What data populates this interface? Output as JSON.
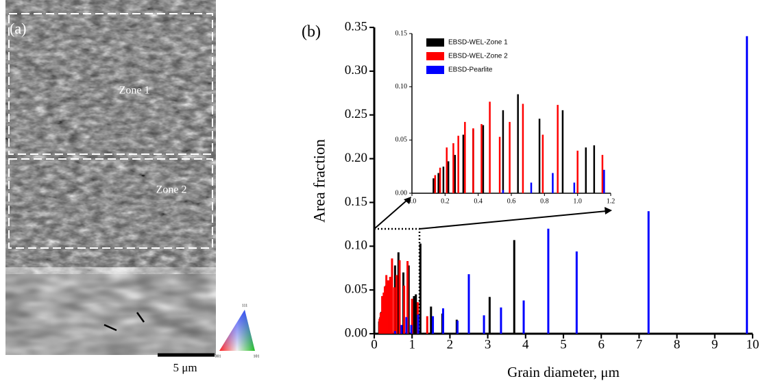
{
  "panel_a": {
    "label": "(a)",
    "zone1": "Zone 1",
    "zone2": "Zone 2",
    "scale_bar": "5 μm",
    "ipf": [
      "111",
      "001",
      "101"
    ]
  },
  "chart_data": {
    "type": "bar",
    "panel_label": "(b)",
    "x_label": "Grain diameter, μm",
    "y_label": "Area fraction",
    "xlim": [
      0,
      10
    ],
    "xticks": [
      0,
      1,
      2,
      3,
      4,
      5,
      6,
      7,
      8,
      9,
      10
    ],
    "ylim": [
      0,
      0.35
    ],
    "yticks": [
      {
        "value": 0,
        "label": "0.00"
      },
      0.05,
      {
        "value": 0.1,
        "label": "0.10"
      },
      0.15,
      {
        "value": 0.2,
        "label": "0.20"
      },
      0.25,
      {
        "value": 0.3,
        "label": "0.30"
      },
      0.35
    ],
    "series": [
      {
        "name": "EBSD-WEL-Zone 1",
        "color": "#000000",
        "x": [
          0.13,
          0.16,
          0.19,
          0.22,
          0.26,
          0.31,
          0.37,
          0.43,
          0.55,
          0.64,
          0.77,
          0.91,
          1.05,
          1.1,
          1.22,
          1.5,
          1.8,
          2.18,
          3.05,
          3.7
        ],
        "values": [
          0.014,
          0.019,
          0.025,
          0.03,
          0.036,
          0.055,
          0.06,
          0.064,
          0.078,
          0.093,
          0.07,
          0.078,
          0.043,
          0.045,
          0.103,
          0.031,
          0.023,
          0.016,
          0.042,
          0.107
        ]
      },
      {
        "name": "EBSD-WEL-Zone 2",
        "color": "#ff0000",
        "x": [
          0.14,
          0.17,
          0.21,
          0.25,
          0.28,
          0.32,
          0.37,
          0.42,
          0.47,
          0.53,
          0.59,
          0.67,
          0.79,
          0.88,
          1.0,
          1.15,
          1.4
        ],
        "values": [
          0.017,
          0.024,
          0.043,
          0.047,
          0.054,
          0.067,
          0.061,
          0.065,
          0.086,
          0.053,
          0.067,
          0.084,
          0.055,
          0.083,
          0.04,
          0.036,
          0.02
        ]
      },
      {
        "name": "EBSD-Pearlite",
        "color": "#0000ff",
        "x": [
          0.55,
          0.72,
          0.85,
          0.98,
          1.16,
          1.55,
          1.82,
          2.2,
          2.5,
          2.9,
          3.35,
          3.95,
          4.6,
          5.35,
          7.25,
          9.85
        ],
        "values": [
          0.003,
          0.01,
          0.019,
          0.01,
          0.022,
          0.02,
          0.029,
          0.015,
          0.068,
          0.021,
          0.03,
          0.038,
          0.12,
          0.094,
          0.14,
          0.34
        ]
      }
    ],
    "inset": {
      "xlim": [
        0,
        1.2
      ],
      "xticks": [
        {
          "value": 0,
          "label": "0.0"
        },
        0.2,
        0.4,
        0.6,
        0.8,
        {
          "value": 1,
          "label": "1.0"
        },
        1.2
      ],
      "ylim": [
        0,
        0.15
      ],
      "yticks": [
        {
          "value": 0,
          "label": "0.00"
        },
        0.05,
        {
          "value": 0.1,
          "label": "0.10"
        },
        0.15
      ]
    }
  }
}
